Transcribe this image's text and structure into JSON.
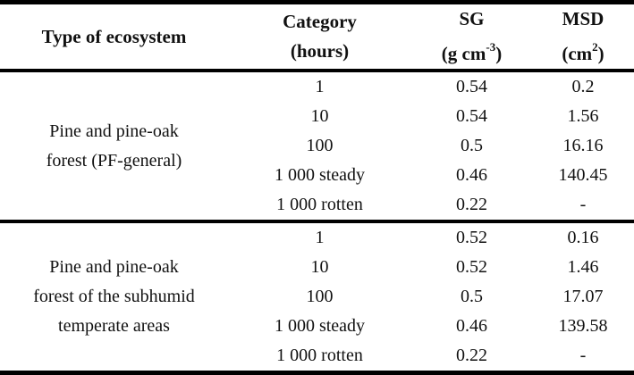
{
  "table": {
    "headers": {
      "ecosystem": "Type of ecosystem",
      "category": {
        "line1": "Category",
        "line2": "(hours)"
      },
      "sg": {
        "line1": "SG",
        "unit_pre": "(g cm",
        "unit_sup": "-3",
        "unit_post": ")"
      },
      "msd": {
        "line1": "MSD",
        "unit_pre": "(cm",
        "unit_sup": "2",
        "unit_post": ")"
      }
    },
    "groups": [
      {
        "ecosystem_lines": {
          "0": "Pine and pine-oak",
          "1": "forest (PF-general)"
        },
        "rows": [
          {
            "category": "1",
            "sg": "0.54",
            "msd": "0.2"
          },
          {
            "category": "10",
            "sg": "0.54",
            "msd": "1.56"
          },
          {
            "category": "100",
            "sg": "0.5",
            "msd": "16.16"
          },
          {
            "category": "1 000 steady",
            "sg": "0.46",
            "msd": "140.45"
          },
          {
            "category": "1 000 rotten",
            "sg": "0.22",
            "msd": "-"
          }
        ]
      },
      {
        "ecosystem_lines": {
          "0": "Pine and pine-oak",
          "1": "forest of the subhumid",
          "2": "temperate areas"
        },
        "rows": [
          {
            "category": "1",
            "sg": "0.52",
            "msd": "0.16"
          },
          {
            "category": "10",
            "sg": "0.52",
            "msd": "1.46"
          },
          {
            "category": "100",
            "sg": "0.5",
            "msd": "17.07"
          },
          {
            "category": "1 000 steady",
            "sg": "0.46",
            "msd": "139.58"
          },
          {
            "category": "1 000 rotten",
            "sg": "0.22",
            "msd": "-"
          }
        ]
      }
    ],
    "colors": {
      "text": "#111111",
      "border": "#000000",
      "background": "#ffffff"
    }
  }
}
